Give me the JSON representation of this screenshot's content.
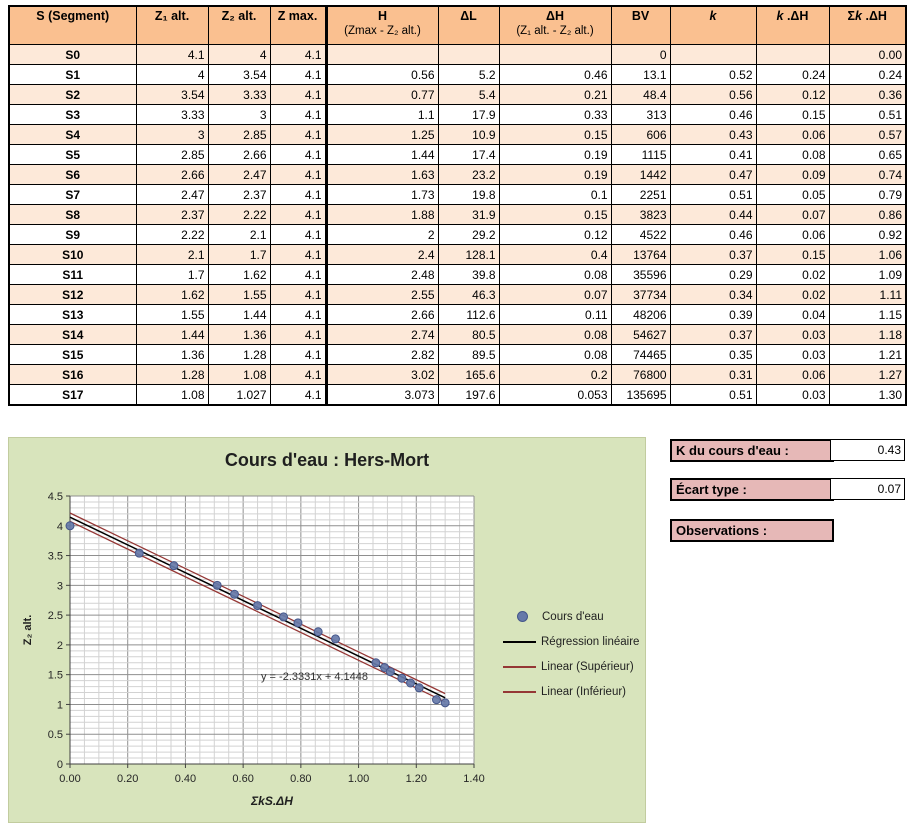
{
  "colors": {
    "table_header": "#FAC090",
    "table_stripe": "#FDE9D9",
    "summary_label_bg": "#E6B8B7",
    "chart_bg": "#D8E4BC"
  },
  "table": {
    "headers": [
      {
        "pre": "S (Segment)",
        "italic": "",
        "post": "",
        "sub": ""
      },
      {
        "pre": "Z₁ alt.",
        "italic": "",
        "post": "",
        "sub": ""
      },
      {
        "pre": "Z₂ alt.",
        "italic": "",
        "post": "",
        "sub": ""
      },
      {
        "pre": "Z max.",
        "italic": "",
        "post": "",
        "sub": ""
      },
      {
        "pre": "H",
        "italic": "",
        "post": "",
        "sub": "(Zmax - Z₂ alt.)"
      },
      {
        "pre": "ΔL",
        "italic": "",
        "post": "",
        "sub": ""
      },
      {
        "pre": "ΔH",
        "italic": "",
        "post": "",
        "sub": "(Z₁ alt. - Z₂ alt.)"
      },
      {
        "pre": "BV",
        "italic": "",
        "post": "",
        "sub": ""
      },
      {
        "pre": "",
        "italic": "k",
        "post": "",
        "sub": ""
      },
      {
        "pre": "",
        "italic": "k",
        "post": " .ΔH",
        "sub": ""
      },
      {
        "pre": "Σ",
        "italic": "k",
        "post": " .ΔH",
        "sub": ""
      }
    ],
    "rows": [
      [
        "S0",
        "4.1",
        "4",
        "4.1",
        "",
        "",
        "",
        "0",
        "",
        "",
        "0.00"
      ],
      [
        "S1",
        "4",
        "3.54",
        "4.1",
        "0.56",
        "5.2",
        "0.46",
        "13.1",
        "0.52",
        "0.24",
        "0.24"
      ],
      [
        "S2",
        "3.54",
        "3.33",
        "4.1",
        "0.77",
        "5.4",
        "0.21",
        "48.4",
        "0.56",
        "0.12",
        "0.36"
      ],
      [
        "S3",
        "3.33",
        "3",
        "4.1",
        "1.1",
        "17.9",
        "0.33",
        "313",
        "0.46",
        "0.15",
        "0.51"
      ],
      [
        "S4",
        "3",
        "2.85",
        "4.1",
        "1.25",
        "10.9",
        "0.15",
        "606",
        "0.43",
        "0.06",
        "0.57"
      ],
      [
        "S5",
        "2.85",
        "2.66",
        "4.1",
        "1.44",
        "17.4",
        "0.19",
        "1115",
        "0.41",
        "0.08",
        "0.65"
      ],
      [
        "S6",
        "2.66",
        "2.47",
        "4.1",
        "1.63",
        "23.2",
        "0.19",
        "1442",
        "0.47",
        "0.09",
        "0.74"
      ],
      [
        "S7",
        "2.47",
        "2.37",
        "4.1",
        "1.73",
        "19.8",
        "0.1",
        "2251",
        "0.51",
        "0.05",
        "0.79"
      ],
      [
        "S8",
        "2.37",
        "2.22",
        "4.1",
        "1.88",
        "31.9",
        "0.15",
        "3823",
        "0.44",
        "0.07",
        "0.86"
      ],
      [
        "S9",
        "2.22",
        "2.1",
        "4.1",
        "2",
        "29.2",
        "0.12",
        "4522",
        "0.46",
        "0.06",
        "0.92"
      ],
      [
        "S10",
        "2.1",
        "1.7",
        "4.1",
        "2.4",
        "128.1",
        "0.4",
        "13764",
        "0.37",
        "0.15",
        "1.06"
      ],
      [
        "S11",
        "1.7",
        "1.62",
        "4.1",
        "2.48",
        "39.8",
        "0.08",
        "35596",
        "0.29",
        "0.02",
        "1.09"
      ],
      [
        "S12",
        "1.62",
        "1.55",
        "4.1",
        "2.55",
        "46.3",
        "0.07",
        "37734",
        "0.34",
        "0.02",
        "1.11"
      ],
      [
        "S13",
        "1.55",
        "1.44",
        "4.1",
        "2.66",
        "112.6",
        "0.11",
        "48206",
        "0.39",
        "0.04",
        "1.15"
      ],
      [
        "S14",
        "1.44",
        "1.36",
        "4.1",
        "2.74",
        "80.5",
        "0.08",
        "54627",
        "0.37",
        "0.03",
        "1.18"
      ],
      [
        "S15",
        "1.36",
        "1.28",
        "4.1",
        "2.82",
        "89.5",
        "0.08",
        "74465",
        "0.35",
        "0.03",
        "1.21"
      ],
      [
        "S16",
        "1.28",
        "1.08",
        "4.1",
        "3.02",
        "165.6",
        "0.2",
        "76800",
        "0.31",
        "0.06",
        "1.27"
      ],
      [
        "S17",
        "1.08",
        "1.027",
        "4.1",
        "3.073",
        "197.6",
        "0.053",
        "135695",
        "0.51",
        "0.03",
        "1.30"
      ]
    ]
  },
  "summary": {
    "k_label": "K du cours d'eau :",
    "k_value": "0.43",
    "ecart_label": "Écart type :",
    "ecart_value": "0.07",
    "observations_label": "Observations :"
  },
  "chart_data": {
    "type": "scatter",
    "title": "Cours d'eau : Hers-Mort",
    "xlabel": "ΣkS.ΔH",
    "ylabel": "Z₂ alt.",
    "xlim": [
      0,
      1.4
    ],
    "ylim": [
      0,
      4.5
    ],
    "x_major": 0.2,
    "x_minor": 0.05,
    "y_major": 0.5,
    "y_minor": 0.1,
    "grid": "on",
    "legend_position": "right",
    "series": [
      {
        "name": "Cours d'eau",
        "points": [
          [
            0,
            4
          ],
          [
            0.24,
            3.54
          ],
          [
            0.36,
            3.33
          ],
          [
            0.51,
            3
          ],
          [
            0.57,
            2.85
          ],
          [
            0.65,
            2.66
          ],
          [
            0.74,
            2.47
          ],
          [
            0.79,
            2.37
          ],
          [
            0.86,
            2.22
          ],
          [
            0.92,
            2.1
          ],
          [
            1.06,
            1.7
          ],
          [
            1.09,
            1.62
          ],
          [
            1.11,
            1.55
          ],
          [
            1.15,
            1.44
          ],
          [
            1.18,
            1.36
          ],
          [
            1.21,
            1.28
          ],
          [
            1.27,
            1.08
          ],
          [
            1.3,
            1.027
          ]
        ]
      }
    ],
    "trendline": {
      "equation": "y = -2.3331x + 4.1448",
      "slope": -2.3331,
      "intercept": 4.1448,
      "band_offset": 0.07,
      "x_start": 0,
      "x_end": 1.3
    },
    "legend": [
      {
        "label": "Cours d'eau",
        "swatch": "marker",
        "color": "#6679A9"
      },
      {
        "label": "Régression linéaire",
        "swatch": "line",
        "color": "#000000"
      },
      {
        "label": "Linear (Supérieur)",
        "swatch": "line",
        "color": "#953735"
      },
      {
        "label": "Linear (Inférieur)",
        "swatch": "line",
        "color": "#953735"
      }
    ],
    "colors": {
      "marker_fill": "#6679A9",
      "marker_stroke": "#44568A",
      "regression": "#000000",
      "band": "#953735",
      "plot_bg": "#FFFFFF",
      "grid_minor": "#D2D2D2",
      "grid_major": "#8F8F8F",
      "axis": "#404040"
    }
  }
}
